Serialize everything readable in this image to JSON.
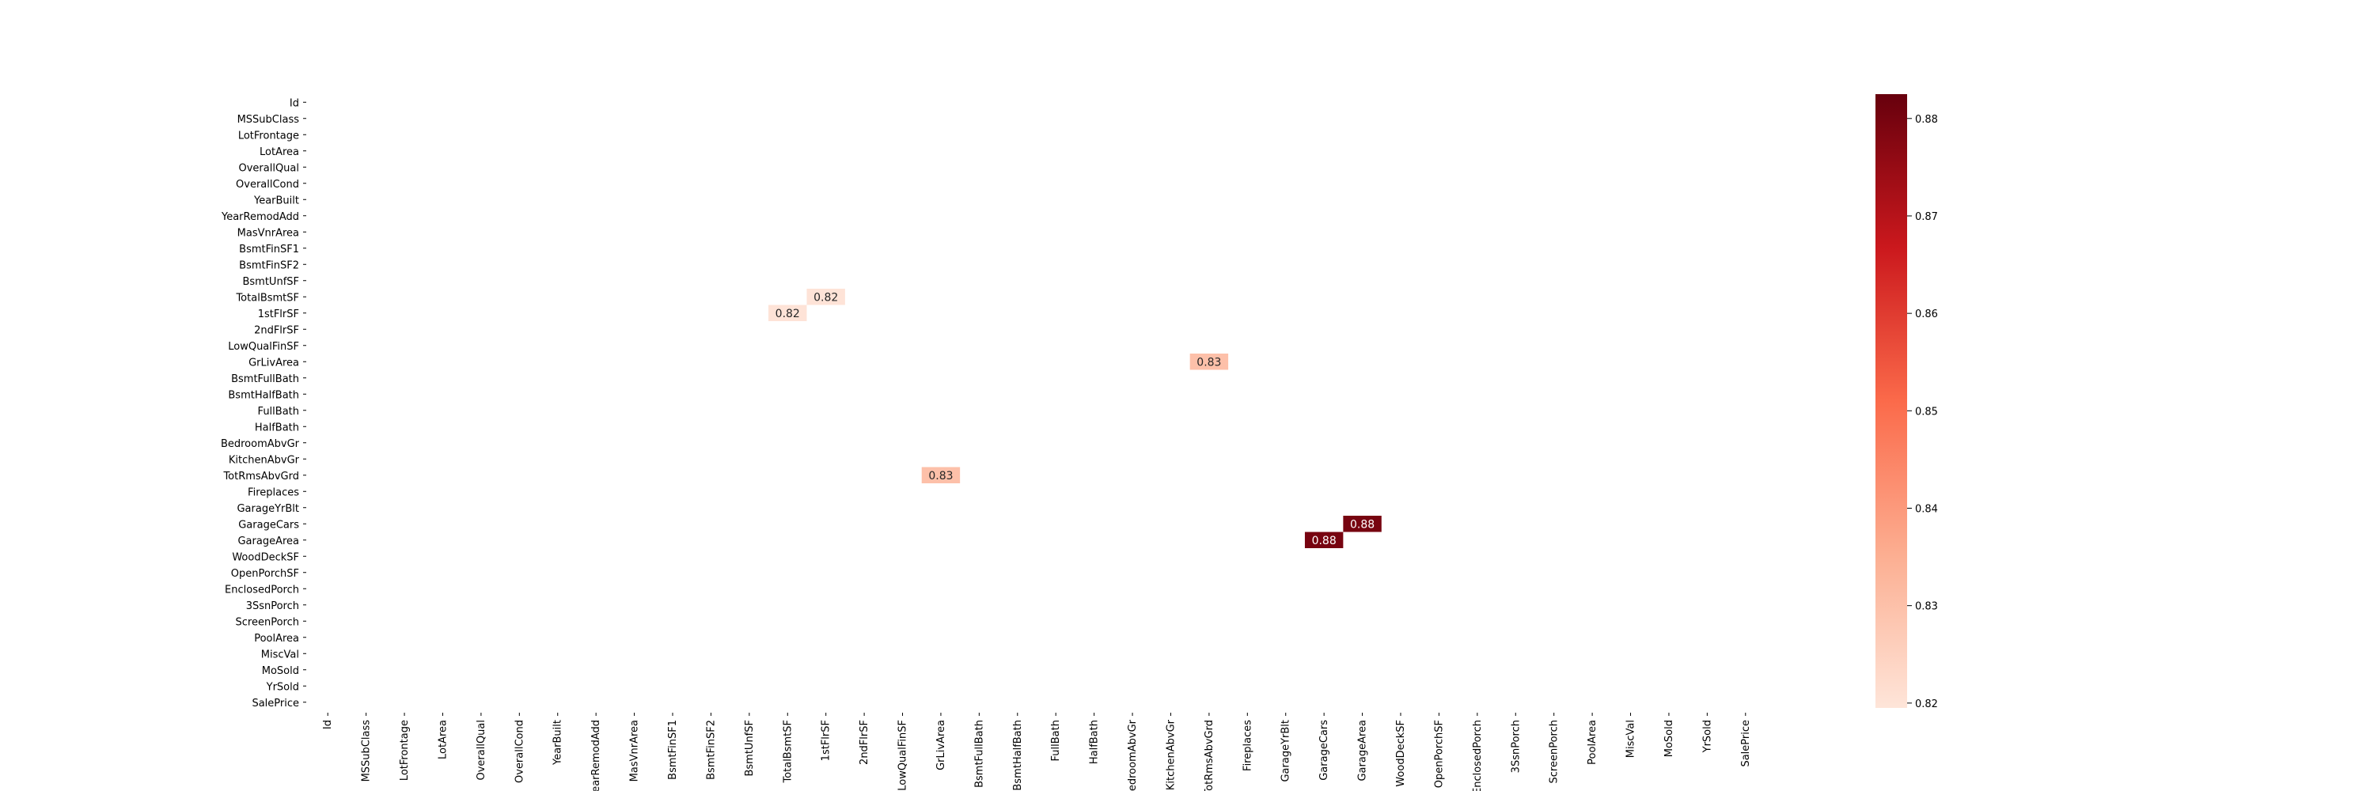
{
  "chart_data": {
    "type": "heatmap",
    "title": "",
    "xlabel": "",
    "ylabel": "",
    "variables": [
      "Id",
      "MSSubClass",
      "LotFrontage",
      "LotArea",
      "OverallQual",
      "OverallCond",
      "YearBuilt",
      "YearRemodAdd",
      "MasVnrArea",
      "BsmtFinSF1",
      "BsmtFinSF2",
      "BsmtUnfSF",
      "TotalBsmtSF",
      "1stFlrSF",
      "2ndFlrSF",
      "LowQualFinSF",
      "GrLivArea",
      "BsmtFullBath",
      "BsmtHalfBath",
      "FullBath",
      "HalfBath",
      "BedroomAbvGr",
      "KitchenAbvGr",
      "TotRmsAbvGrd",
      "Fireplaces",
      "GarageYrBlt",
      "GarageCars",
      "GarageArea",
      "WoodDeckSF",
      "OpenPorchSF",
      "EnclosedPorch",
      "3SsnPorch",
      "ScreenPorch",
      "PoolArea",
      "MiscVal",
      "MoSold",
      "YrSold",
      "SalePrice"
    ],
    "cells": [
      {
        "row": "TotalBsmtSF",
        "col": "1stFlrSF",
        "value": 0.82,
        "label": "0.82"
      },
      {
        "row": "1stFlrSF",
        "col": "TotalBsmtSF",
        "value": 0.82,
        "label": "0.82"
      },
      {
        "row": "GrLivArea",
        "col": "TotRmsAbvGrd",
        "value": 0.83,
        "label": "0.83"
      },
      {
        "row": "TotRmsAbvGrd",
        "col": "GrLivArea",
        "value": 0.83,
        "label": "0.83"
      },
      {
        "row": "GarageCars",
        "col": "GarageArea",
        "value": 0.88,
        "label": "0.88"
      },
      {
        "row": "GarageArea",
        "col": "GarageCars",
        "value": 0.88,
        "label": "0.88"
      }
    ],
    "colorbar": {
      "cmap": "Reds",
      "vmin": 0.8195,
      "vmax": 0.8825,
      "ticks": [
        0.82,
        0.83,
        0.84,
        0.85,
        0.86,
        0.87,
        0.88
      ],
      "tick_labels": [
        "0.82",
        "0.83",
        "0.84",
        "0.85",
        "0.86",
        "0.87",
        "0.88"
      ]
    },
    "grid": false,
    "legend": "colorbar-right"
  }
}
